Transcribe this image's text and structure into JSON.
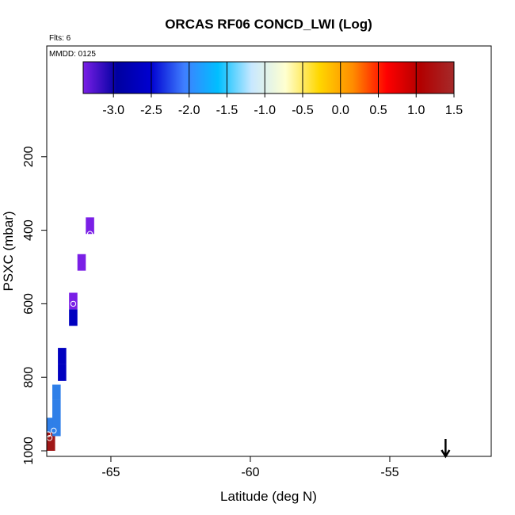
{
  "chart_data": {
    "type": "heatmap",
    "title": "ORCAS RF06 CONCD_LWI (Log)",
    "flights_label": "Flts: 6",
    "date_label": "MMDD: 0125",
    "xlabel": "Latitude (deg N)",
    "ylabel": "PSXC (mbar)",
    "xlim": [
      -67.3,
      -52.0
    ],
    "ylim": [
      1000,
      0
    ],
    "x_ticks": [
      -65,
      -60,
      -55
    ],
    "y_ticks": [
      200,
      400,
      600,
      800,
      1000
    ],
    "colorbar": {
      "range": [
        -3.4,
        1.5
      ],
      "ticks": [
        -3.0,
        -2.5,
        -2.0,
        -1.5,
        -1.0,
        -0.5,
        0.0,
        0.5,
        1.0,
        1.5
      ],
      "tick_labels": [
        "-3.0",
        "-2.5",
        "-2.0",
        "-1.5",
        "-1.0",
        "-0.5",
        "0.0",
        "0.5",
        "1.0",
        "1.5"
      ],
      "colors": [
        "#7a1fe6",
        "#0000a0",
        "#0000d0",
        "#3f7fff",
        "#00bfff",
        "#c8e8ff",
        "#ffffd0",
        "#ffd700",
        "#ff8c00",
        "#ff0000",
        "#b20000",
        "#a52a2a"
      ]
    },
    "cells": [
      {
        "lat": -67.25,
        "p_top": 950,
        "p_bot": 1000,
        "value": 1.3,
        "color": "#a01818"
      },
      {
        "lat": -67.25,
        "p_top": 910,
        "p_bot": 950,
        "value": -2.1,
        "color": "#2f7fe8"
      },
      {
        "lat": -66.95,
        "p_top": 860,
        "p_bot": 960,
        "value": -2.1,
        "color": "#2f7fe8"
      },
      {
        "lat": -66.95,
        "p_top": 820,
        "p_bot": 860,
        "value": -2.1,
        "color": "#2f7fe8"
      },
      {
        "lat": -66.75,
        "p_top": 765,
        "p_bot": 810,
        "value": -2.7,
        "color": "#0000c0"
      },
      {
        "lat": -66.75,
        "p_top": 720,
        "p_bot": 765,
        "value": -2.7,
        "color": "#0000c0"
      },
      {
        "lat": -66.35,
        "p_top": 615,
        "p_bot": 660,
        "value": -2.8,
        "color": "#0000c0"
      },
      {
        "lat": -66.35,
        "p_top": 570,
        "p_bot": 615,
        "value": -3.3,
        "color": "#7a1fe6"
      },
      {
        "lat": -66.05,
        "p_top": 465,
        "p_bot": 510,
        "value": -3.3,
        "color": "#7a1fe6"
      },
      {
        "lat": -65.75,
        "p_top": 365,
        "p_bot": 410,
        "value": -3.3,
        "color": "#7a1fe6"
      }
    ],
    "points": [
      {
        "lat": -67.25,
        "p": 955
      },
      {
        "lat": -67.05,
        "p": 945
      },
      {
        "lat": -67.2,
        "p": 965
      },
      {
        "lat": -66.35,
        "p": 600
      },
      {
        "lat": -65.75,
        "p": 410
      }
    ],
    "arrow": {
      "lat": -53.0,
      "p": 1000
    }
  }
}
